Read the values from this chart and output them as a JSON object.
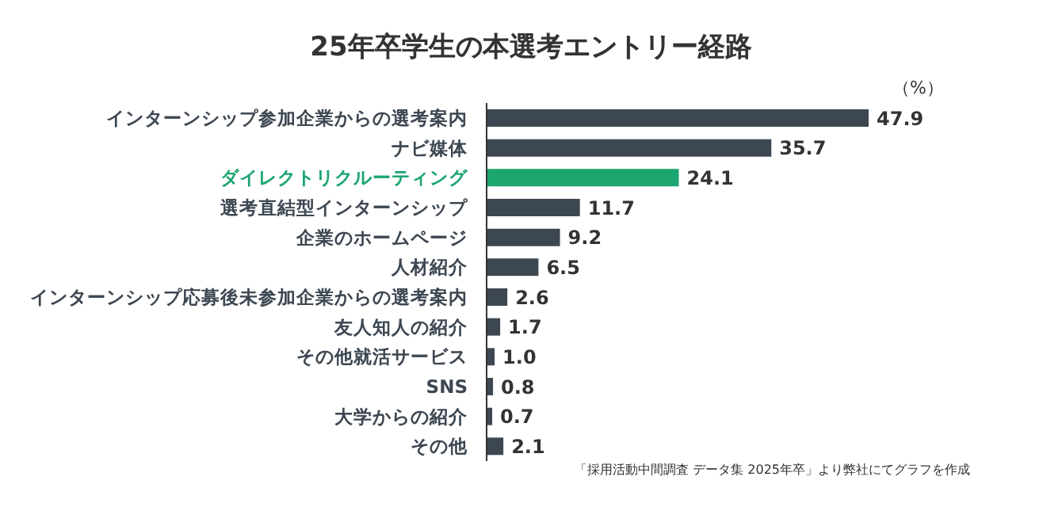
{
  "chart_data": {
    "type": "bar",
    "orientation": "horizontal",
    "title": "25年卒学生の本選考エントリー経路",
    "xlabel": "（%）",
    "categories": [
      "インターンシップ参加企業からの選考案内",
      "ナビ媒体",
      "ダイレクトリクルーティング",
      "選考直結型インターンシップ",
      "企業のホームページ",
      "人材紹介",
      "インターンシップ応募後未参加企業からの選考案内",
      "友人知人の紹介",
      "その他就活サービス",
      "SNS",
      "大学からの紹介",
      "その他"
    ],
    "values": [
      47.9,
      35.7,
      24.1,
      11.7,
      9.2,
      6.5,
      2.6,
      1.7,
      1.0,
      0.8,
      0.7,
      2.1
    ],
    "colors": [
      "#3d4752",
      "#3d4752",
      "#1ba56f",
      "#3d4752",
      "#3d4752",
      "#3d4752",
      "#3d4752",
      "#3d4752",
      "#3d4752",
      "#3d4752",
      "#3d4752",
      "#3d4752"
    ],
    "value_labels": [
      "47.9",
      "35.7",
      "24.1",
      "11.7",
      "9.2",
      "6.5",
      "2.6",
      "1.7",
      "1.0",
      "0.8",
      "0.7",
      "2.1"
    ],
    "annotations": [
      "「採用活動中間調査 データ集 2025年卒」より弊社にてグラフを作成"
    ]
  }
}
